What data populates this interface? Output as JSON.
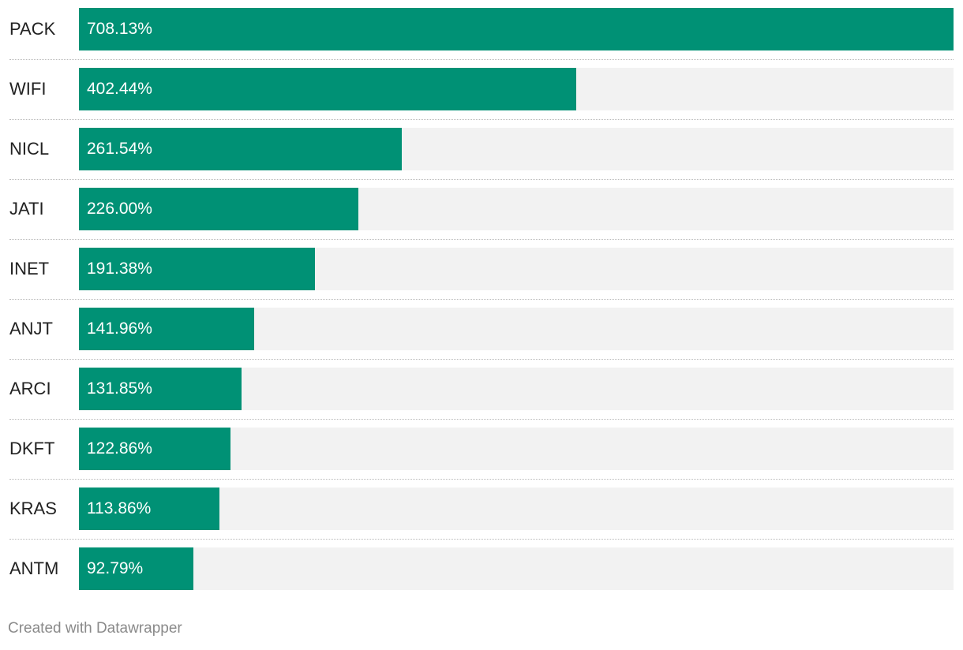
{
  "chart_data": {
    "type": "bar",
    "orientation": "horizontal",
    "categories": [
      "PACK",
      "WIFI",
      "NICL",
      "JATI",
      "INET",
      "ANJT",
      "ARCI",
      "DKFT",
      "KRAS",
      "ANTM"
    ],
    "values": [
      708.13,
      402.44,
      261.54,
      226.0,
      191.38,
      141.96,
      131.85,
      122.86,
      113.86,
      92.79
    ],
    "value_labels": [
      "708.13%",
      "402.44%",
      "261.54%",
      "226.00%",
      "191.38%",
      "141.96%",
      "131.85%",
      "122.86%",
      "113.86%",
      "92.79%"
    ],
    "unit": "%",
    "xlim": [
      0,
      708.13
    ],
    "grid": false,
    "colors": {
      "bar": "#009175",
      "track": "#f2f2f2",
      "label": "#222222",
      "value": "#ffffff"
    }
  },
  "footer": {
    "credit": "Created with Datawrapper"
  }
}
